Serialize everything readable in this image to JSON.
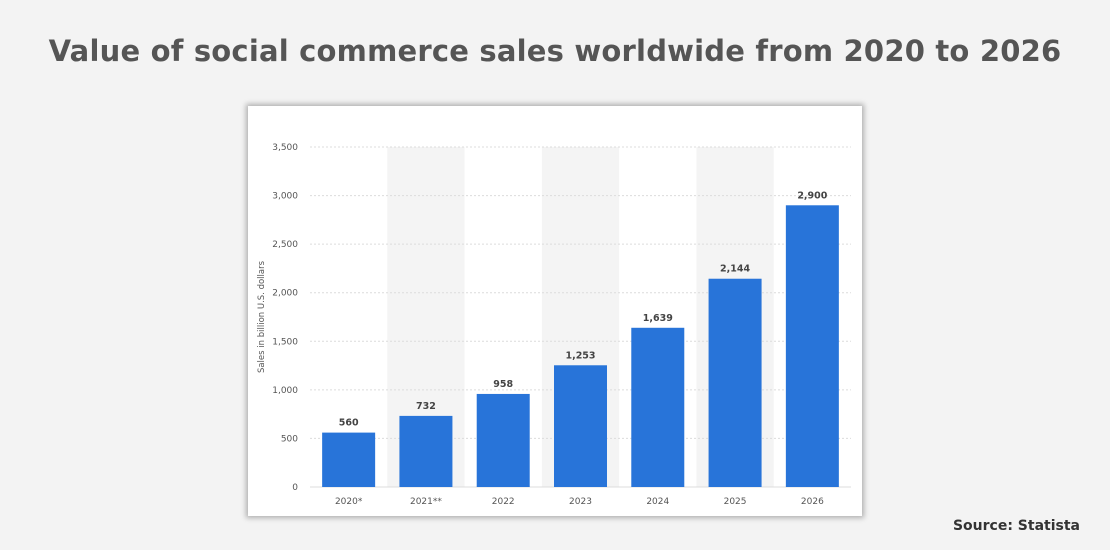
{
  "page": {
    "title": "Value of social commerce sales worldwide from 2020 to 2026",
    "source": "Source: Statista"
  },
  "colors": {
    "bar": "#2874d9",
    "stripe": "#f4f4f4",
    "grid": "#dcdcdc",
    "text": "#555555"
  },
  "chart_data": {
    "type": "bar",
    "title": "",
    "xlabel": "",
    "ylabel": "Sales in billion U.S. dollars",
    "categories": [
      "2020*",
      "2021**",
      "2022",
      "2023",
      "2024",
      "2025",
      "2026"
    ],
    "values": [
      560,
      732,
      958,
      1253,
      1639,
      2144,
      2900
    ],
    "value_labels": [
      "560",
      "732",
      "958",
      "1,253",
      "1,639",
      "2,144",
      "2,900"
    ],
    "ylim": [
      0,
      3500
    ],
    "yticks": [
      0,
      500,
      1000,
      1500,
      2000,
      2500,
      3000,
      3500
    ],
    "ytick_labels": [
      "0",
      "500",
      "1,000",
      "1,500",
      "2,000",
      "2,500",
      "3,000",
      "3,500"
    ],
    "grid": true,
    "alternating_column_shading": true,
    "legend": "none"
  }
}
